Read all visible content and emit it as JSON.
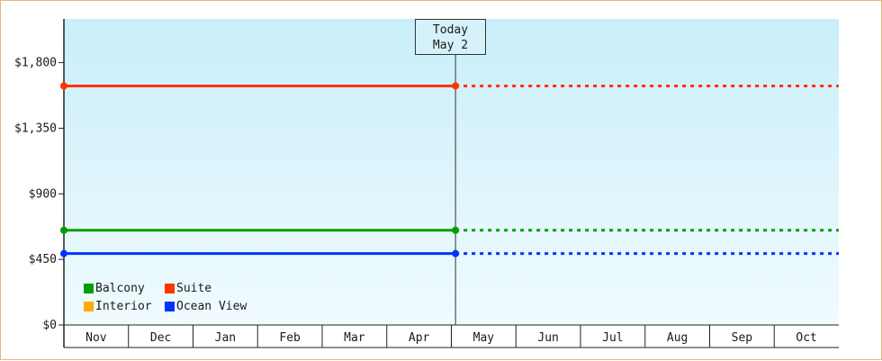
{
  "chart_data": {
    "type": "line",
    "y_ticks": [
      "$1,800",
      "$1,350",
      "$900",
      "$450",
      "$0"
    ],
    "y_tick_values": [
      1800,
      1350,
      900,
      450,
      0
    ],
    "ylim": [
      0,
      2100
    ],
    "x_months": [
      "Nov",
      "Dec",
      "Jan",
      "Feb",
      "Mar",
      "Apr",
      "May",
      "Jun",
      "Jul",
      "Aug",
      "Sep",
      "Oct"
    ],
    "today_marker": {
      "line1": "Today",
      "line2": "May 2"
    },
    "series": [
      {
        "name": "Balcony",
        "color": "#00a000",
        "value": 650,
        "historical_style": "solid",
        "forecast_style": "dotted"
      },
      {
        "name": "Suite",
        "color": "#ff3300",
        "value": 1640,
        "historical_style": "solid",
        "forecast_style": "dotted"
      },
      {
        "name": "Interior",
        "color": "#ffaa00",
        "value": null
      },
      {
        "name": "Ocean View",
        "color": "#0033ff",
        "value": 490,
        "historical_style": "solid",
        "forecast_style": "dotted"
      }
    ],
    "legend_position": "bottom-left",
    "background_gradient": [
      "#c9eefa",
      "#f0fbfe"
    ]
  }
}
